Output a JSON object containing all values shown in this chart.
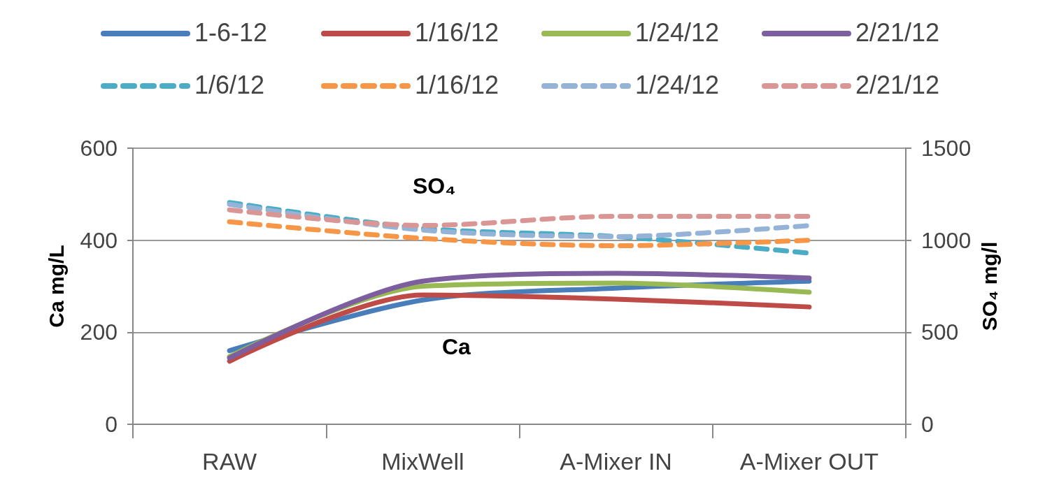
{
  "chart_data": {
    "type": "line",
    "categories": [
      "RAW",
      "MixWell",
      "A-Mixer IN",
      "A-Mixer OUT"
    ],
    "ylabel": "Ca mg/L",
    "y2label": "SO₄ mg/l",
    "ylim": [
      0,
      600
    ],
    "yticks": [
      0,
      200,
      400,
      600
    ],
    "y2lim": [
      0,
      1500
    ],
    "y2ticks": [
      0,
      500,
      1000,
      1500
    ],
    "grid": "y",
    "legend": "top",
    "marker": "none",
    "annotations": [
      "SO₄",
      "Ca"
    ],
    "series": [
      {
        "name": "1-6-12",
        "color": "#4a7ebb",
        "line_style": "solid",
        "values": [
          160,
          270,
          296,
          311
        ]
      },
      {
        "name": "1/16/12",
        "color": "#be4b48",
        "line_style": "solid",
        "values": [
          137,
          281,
          272,
          255
        ]
      },
      {
        "name": "1/24/12",
        "color": "#98b954",
        "line_style": "solid",
        "values": [
          147,
          300,
          307,
          287
        ]
      },
      {
        "name": "2/21/12",
        "color": "#7d5fa0",
        "line_style": "solid",
        "values": [
          144,
          311,
          328,
          318
        ]
      },
      {
        "name": "1/6/12",
        "color": "#4bacc6",
        "line_style": "dashed",
        "axis": "y2",
        "values": [
          1205,
          1065,
          1020,
          930
        ]
      },
      {
        "name": "1/16/12",
        "color": "#f79646",
        "line_style": "dashed",
        "axis": "y2",
        "values": [
          1100,
          1010,
          970,
          1000
        ]
      },
      {
        "name": "1/24/12",
        "color": "#95b3d7",
        "line_style": "dashed",
        "axis": "y2",
        "values": [
          1195,
          1055,
          1020,
          1080
        ]
      },
      {
        "name": "2/21/12",
        "color": "#d99694",
        "line_style": "dashed",
        "axis": "y2",
        "values": [
          1165,
          1080,
          1130,
          1130
        ]
      }
    ]
  }
}
